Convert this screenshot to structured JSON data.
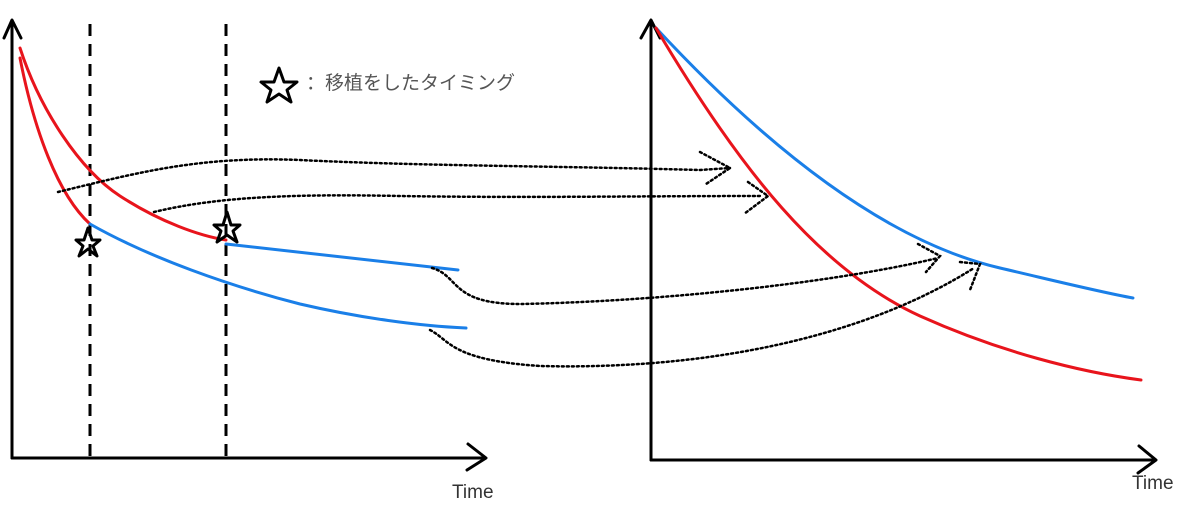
{
  "legend": {
    "icon": "star-icon",
    "text": "：移植をしたタイミング"
  },
  "left_panel": {
    "x_axis_label": "Time"
  },
  "right_panel": {
    "x_axis_label": "Time"
  },
  "colors": {
    "red": "#e8141c",
    "blue": "#1a7fe8",
    "axis": "#000000"
  }
}
